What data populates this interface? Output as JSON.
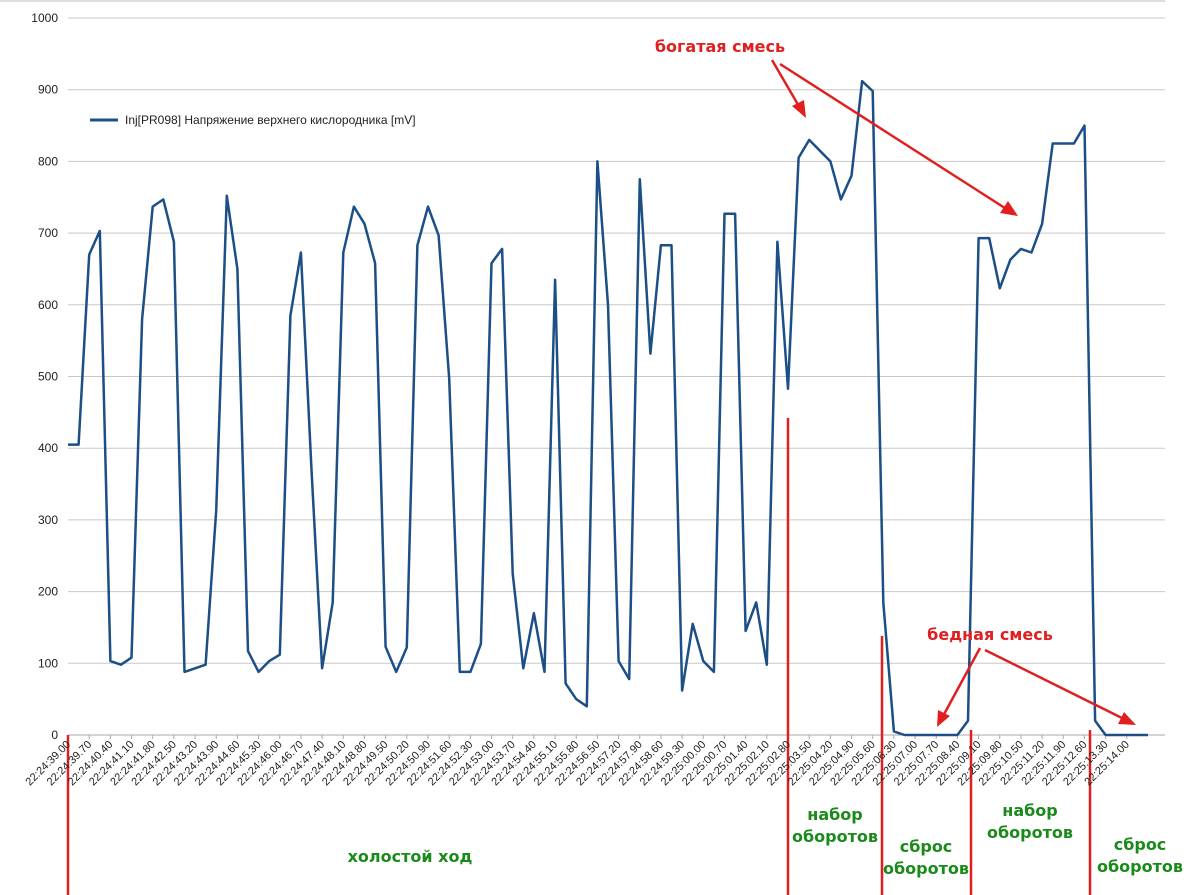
{
  "chart_data": {
    "type": "line",
    "legend": "Inj[PR098] Напряжение верхнего кислородника [mV]",
    "color": "#1b4f86",
    "grid": true,
    "ylim": [
      0,
      1000
    ],
    "yticks": [
      0,
      100,
      200,
      300,
      400,
      500,
      600,
      700,
      800,
      900,
      1000
    ],
    "categories": [
      "22:24:39.00",
      null,
      "22:24:39.70",
      null,
      "22:24:40.40",
      null,
      "22:24:41.10",
      null,
      "22:24:41.80",
      null,
      "22:24:42.50",
      null,
      "22:24:43.20",
      null,
      "22:24:43.90",
      null,
      "22:24:44.60",
      null,
      "22:24:45.30",
      null,
      "22:24:46.00",
      null,
      "22:24:46.70",
      null,
      "22:24:47.40",
      null,
      "22:24:48.10",
      null,
      "22:24:48.80",
      null,
      "22:24:49.50",
      null,
      "22:24:50.20",
      null,
      "22:24:50.90",
      null,
      "22:24:51.60",
      null,
      "22:24:52.30",
      null,
      "22:24:53.00",
      null,
      "22:24:53.70",
      null,
      "22:24:54.40",
      null,
      "22:24:55.10",
      null,
      "22:24:55.80",
      null,
      "22:24:56.50",
      null,
      "22:24:57.20",
      null,
      "22:24:57.90",
      null,
      "22:24:58.60",
      null,
      "22:24:59.30",
      null,
      "22:25:00.00",
      null,
      "22:25:00.70",
      null,
      "22:25:01.40",
      null,
      "22:25:02.10",
      null,
      "22:25:02.80",
      null,
      "22:25:03.50",
      null,
      "22:25:04.20",
      null,
      "22:25:04.90",
      null,
      "22:25:05.60",
      null,
      "22:25:06.30",
      null,
      "22:25:07.00",
      null,
      "22:25:07.70",
      null,
      "22:25:08.40",
      null,
      "22:25:09.10",
      null,
      "22:25:09.80",
      null,
      "22:25:10.50",
      null,
      "22:25:11.20",
      null,
      "22:25:11.90",
      null,
      "22:25:12.60",
      null,
      "22:25:13.30",
      null,
      "22:25:14.00",
      null,
      null
    ],
    "values": [
      405,
      405,
      670,
      703,
      103,
      98,
      108,
      580,
      737,
      747,
      688,
      88,
      93,
      98,
      313,
      752,
      650,
      117,
      88,
      103,
      112,
      585,
      673,
      370,
      93,
      185,
      673,
      737,
      713,
      658,
      123,
      88,
      122,
      683,
      737,
      697,
      497,
      88,
      88,
      127,
      658,
      678,
      225,
      93,
      170,
      88,
      635,
      72,
      50,
      40,
      800,
      600,
      103,
      78,
      775,
      532,
      683,
      683,
      62,
      155,
      103,
      88,
      727,
      727,
      145,
      185,
      98,
      688,
      483,
      805,
      830,
      815,
      800,
      747,
      780,
      912,
      898,
      185,
      5,
      0,
      0,
      0,
      0,
      0,
      0,
      20,
      693,
      693,
      623,
      663,
      678,
      673,
      713,
      825,
      825,
      825,
      850,
      20,
      0,
      0,
      0,
      0,
      0
    ],
    "annotations": [
      "богатая смесь",
      "бедная смесь",
      "набор оборотов",
      "сброс оборотов",
      "набор оборотов",
      "сброс оборотов",
      "холостой ход"
    ]
  }
}
